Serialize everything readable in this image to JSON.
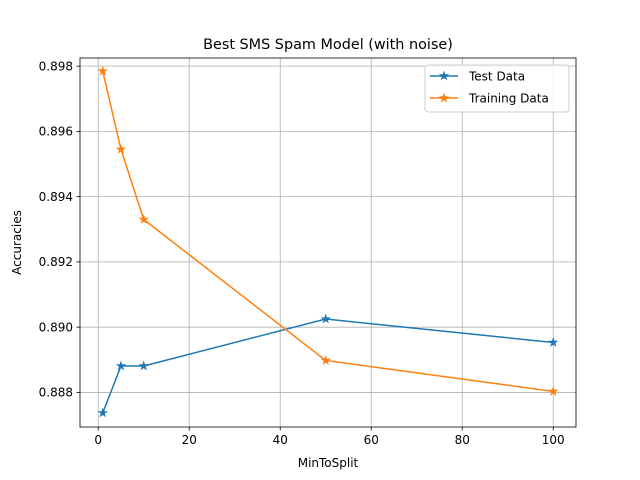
{
  "chart_data": {
    "type": "line",
    "title": "Best SMS Spam Model (with noise)",
    "xlabel": "MinToSplit",
    "ylabel": "Accuracies",
    "x": [
      1,
      5,
      10,
      50,
      100
    ],
    "series": [
      {
        "name": "Test Data",
        "color": "#1f77b4",
        "marker": "star",
        "values": [
          0.88737,
          0.88881,
          0.88881,
          0.89025,
          0.88953
        ]
      },
      {
        "name": "Training Data",
        "color": "#ff7f0e",
        "marker": "star",
        "values": [
          0.89785,
          0.89545,
          0.8933,
          0.88898,
          0.88803
        ]
      }
    ],
    "xlim": [
      -4,
      105
    ],
    "ylim": [
      0.88694,
      0.89825
    ],
    "xticks": [
      0,
      20,
      40,
      60,
      80,
      100
    ],
    "xtick_labels": [
      "0",
      "20",
      "40",
      "60",
      "80",
      "100"
    ],
    "yticks": [
      0.888,
      0.89,
      0.892,
      0.894,
      0.896,
      0.898
    ],
    "ytick_labels": [
      "0.888",
      "0.890",
      "0.892",
      "0.894",
      "0.896",
      "0.898"
    ],
    "grid": true,
    "legend_position": "upper right"
  }
}
